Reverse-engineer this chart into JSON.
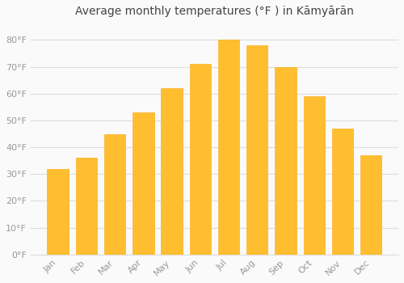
{
  "title": "Average monthly temperatures (°F ) in Kāmyārān",
  "months": [
    "Jan",
    "Feb",
    "Mar",
    "Apr",
    "May",
    "Jun",
    "Jul",
    "Aug",
    "Sep",
    "Oct",
    "Nov",
    "Dec"
  ],
  "values": [
    32,
    36,
    45,
    53,
    62,
    71,
    80,
    78,
    70,
    59,
    47,
    37
  ],
  "bar_color": "#FFBE30",
  "bar_edge_color": "#FFB020",
  "background_color": "#FAFAFA",
  "grid_color": "#DDDDDD",
  "ylim": [
    0,
    87
  ],
  "yticks": [
    0,
    10,
    20,
    30,
    40,
    50,
    60,
    70,
    80
  ],
  "ytick_labels": [
    "0°F",
    "10°F",
    "20°F",
    "30°F",
    "40°F",
    "50°F",
    "60°F",
    "70°F",
    "80°F"
  ],
  "tick_color": "#999999",
  "title_fontsize": 10,
  "tick_fontsize": 8,
  "label_rotation": 45
}
